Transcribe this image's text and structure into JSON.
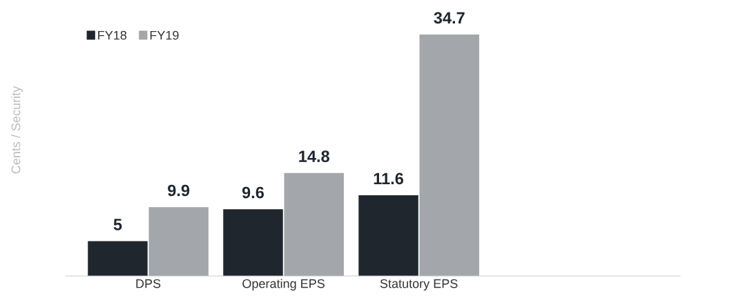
{
  "chart_data": {
    "type": "bar",
    "ylabel": "Cents / Security",
    "categories": [
      "DPS",
      "Operating EPS",
      "Statutory EPS"
    ],
    "series": [
      {
        "name": "FY18",
        "color": "#1f262e",
        "values": [
          5,
          9.6,
          11.6
        ]
      },
      {
        "name": "FY19",
        "color": "#a3a7ab",
        "values": [
          9.9,
          14.8,
          34.7
        ]
      }
    ],
    "data_labels": true,
    "legend": "top left",
    "grid": false
  }
}
